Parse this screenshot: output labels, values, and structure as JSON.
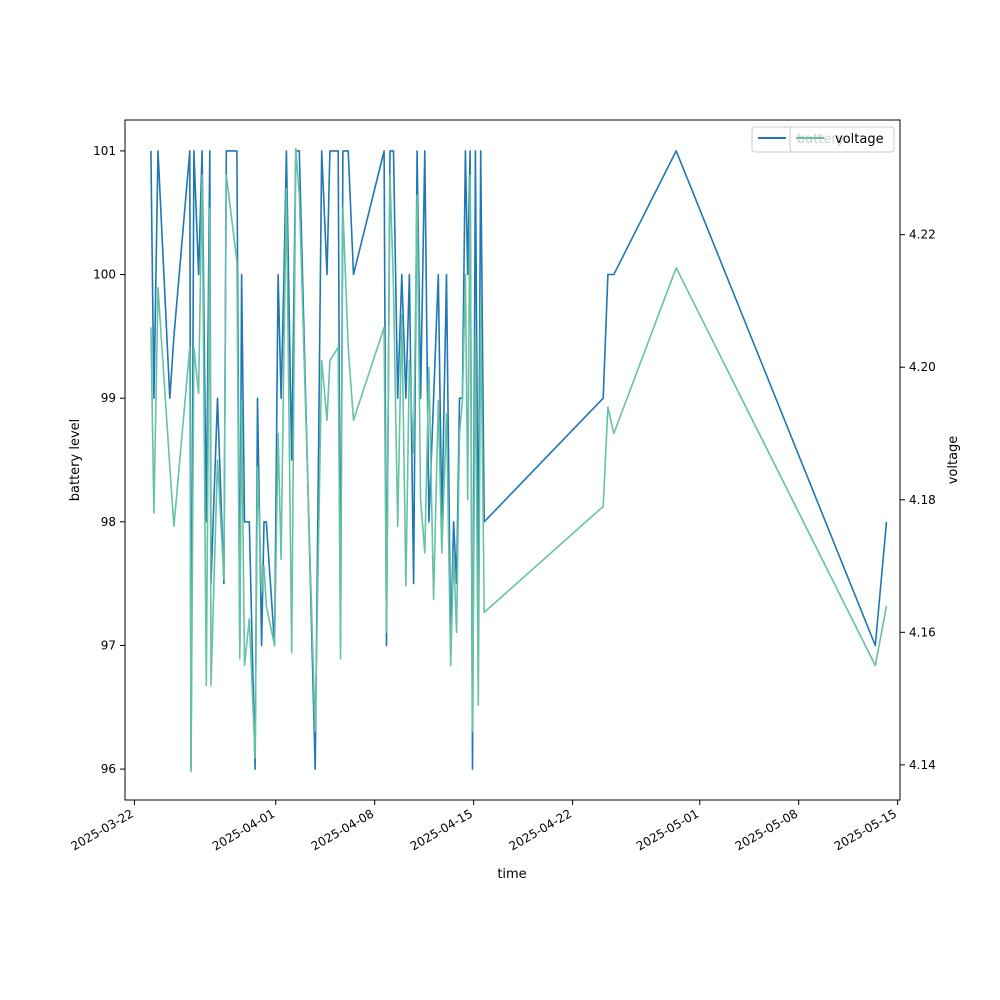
{
  "chart_data": {
    "type": "line",
    "xlabel": "time",
    "y_left_label": "battery level",
    "y_right_label": "voltage",
    "x_range": [
      "2025-03-21T08:00",
      "2025-05-15T04:00"
    ],
    "y_left_range": [
      95.75,
      101.25
    ],
    "y_right_range": [
      4.1347,
      4.2373
    ],
    "x_ticks": [
      "2025-03-22",
      "2025-04-01",
      "2025-04-08",
      "2025-04-15",
      "2025-04-22",
      "2025-05-01",
      "2025-05-08",
      "2025-05-15"
    ],
    "y_left_ticks": [
      96,
      97,
      98,
      99,
      100,
      101
    ],
    "y_right_ticks": [
      "4.14",
      "4.16",
      "4.18",
      "4.20",
      "4.22"
    ],
    "grid": false,
    "legend_position": "top-right",
    "series": [
      {
        "name": "battery",
        "axis": "left",
        "color": "#1f77b4",
        "points": [
          [
            "2025-03-23T04:00",
            101
          ],
          [
            "2025-03-23T09:00",
            99
          ],
          [
            "2025-03-23T16:00",
            101
          ],
          [
            "2025-03-24T12:00",
            99
          ],
          [
            "2025-03-24T19:00",
            99.5
          ],
          [
            "2025-03-25T22:00",
            101
          ],
          [
            "2025-03-26T00:00",
            96
          ],
          [
            "2025-03-26T05:00",
            101
          ],
          [
            "2025-03-26T13:00",
            100
          ],
          [
            "2025-03-26T19:00",
            101
          ],
          [
            "2025-03-27T02:00",
            98
          ],
          [
            "2025-03-27T08:00",
            101
          ],
          [
            "2025-03-27T10:00",
            97.5
          ],
          [
            "2025-03-27T21:00",
            99
          ],
          [
            "2025-03-28T08:00",
            97.5
          ],
          [
            "2025-03-28T12:00",
            101
          ],
          [
            "2025-03-29T06:00",
            101
          ],
          [
            "2025-03-29T11:00",
            97
          ],
          [
            "2025-03-29T14:00",
            100
          ],
          [
            "2025-03-29T19:00",
            98
          ],
          [
            "2025-03-30T03:00",
            98
          ],
          [
            "2025-03-30T13:00",
            96
          ],
          [
            "2025-03-30T17:00",
            99
          ],
          [
            "2025-03-31T00:00",
            97
          ],
          [
            "2025-03-31T04:00",
            98
          ],
          [
            "2025-03-31T08:00",
            98
          ],
          [
            "2025-03-31T22:00",
            97
          ],
          [
            "2025-04-01T04:00",
            100
          ],
          [
            "2025-04-01T09:00",
            99
          ],
          [
            "2025-04-01T14:00",
            100
          ],
          [
            "2025-04-01T18:00",
            101
          ],
          [
            "2025-04-02T03:00",
            98.5
          ],
          [
            "2025-04-02T10:00",
            101
          ],
          [
            "2025-04-02T16:00",
            101
          ],
          [
            "2025-04-03T19:00",
            96
          ],
          [
            "2025-04-04T06:00",
            101
          ],
          [
            "2025-04-04T15:00",
            100
          ],
          [
            "2025-04-04T20:00",
            101
          ],
          [
            "2025-04-05T10:00",
            101
          ],
          [
            "2025-04-05T14:00",
            97
          ],
          [
            "2025-04-05T18:00",
            101
          ],
          [
            "2025-04-06T03:00",
            101
          ],
          [
            "2025-04-06T12:00",
            100
          ],
          [
            "2025-04-08T16:00",
            101
          ],
          [
            "2025-04-08T20:00",
            97
          ],
          [
            "2025-04-09T02:00",
            101
          ],
          [
            "2025-04-09T08:00",
            101
          ],
          [
            "2025-04-09T15:00",
            99
          ],
          [
            "2025-04-09T22:00",
            100
          ],
          [
            "2025-04-10T05:00",
            99
          ],
          [
            "2025-04-10T11:00",
            100
          ],
          [
            "2025-04-10T18:00",
            97.5
          ],
          [
            "2025-04-11T00:00",
            101
          ],
          [
            "2025-04-11T06:00",
            99
          ],
          [
            "2025-04-11T13:00",
            101
          ],
          [
            "2025-04-11T20:00",
            98
          ],
          [
            "2025-04-12T04:00",
            99
          ],
          [
            "2025-04-12T12:00",
            100
          ],
          [
            "2025-04-12T18:00",
            98
          ],
          [
            "2025-04-13T02:00",
            100
          ],
          [
            "2025-04-13T09:00",
            97
          ],
          [
            "2025-04-13T14:00",
            98
          ],
          [
            "2025-04-13T19:00",
            97.5
          ],
          [
            "2025-04-14T00:00",
            99
          ],
          [
            "2025-04-14T05:00",
            99
          ],
          [
            "2025-04-14T10:00",
            101
          ],
          [
            "2025-04-14T14:00",
            100
          ],
          [
            "2025-04-14T18:00",
            101
          ],
          [
            "2025-04-14T22:00",
            96
          ],
          [
            "2025-04-15T03:00",
            101
          ],
          [
            "2025-04-15T08:00",
            97.5
          ],
          [
            "2025-04-15T12:00",
            101
          ],
          [
            "2025-04-15T18:00",
            98
          ],
          [
            "2025-04-24T04:00",
            99
          ],
          [
            "2025-04-24T12:00",
            100
          ],
          [
            "2025-04-24T22:00",
            100
          ],
          [
            "2025-04-29T08:00",
            101
          ],
          [
            "2025-05-13T10:00",
            97
          ],
          [
            "2025-05-14T05:00",
            98
          ]
        ]
      },
      {
        "name": "voltage",
        "axis": "right",
        "color": "#66c2a5",
        "points": [
          [
            "2025-03-23T04:00",
            4.206
          ],
          [
            "2025-03-23T09:00",
            4.178
          ],
          [
            "2025-03-23T16:00",
            4.212
          ],
          [
            "2025-03-24T12:00",
            4.185
          ],
          [
            "2025-03-24T19:00",
            4.176
          ],
          [
            "2025-03-25T22:00",
            4.203
          ],
          [
            "2025-03-26T00:00",
            4.139
          ],
          [
            "2025-03-26T05:00",
            4.203
          ],
          [
            "2025-03-26T13:00",
            4.196
          ],
          [
            "2025-03-26T19:00",
            4.229
          ],
          [
            "2025-03-27T02:00",
            4.152
          ],
          [
            "2025-03-27T08:00",
            4.224
          ],
          [
            "2025-03-27T10:00",
            4.152
          ],
          [
            "2025-03-27T21:00",
            4.186
          ],
          [
            "2025-03-28T08:00",
            4.168
          ],
          [
            "2025-03-28T12:00",
            4.229
          ],
          [
            "2025-03-29T06:00",
            4.216
          ],
          [
            "2025-03-29T11:00",
            4.156
          ],
          [
            "2025-03-29T14:00",
            4.195
          ],
          [
            "2025-03-29T19:00",
            4.155
          ],
          [
            "2025-03-30T03:00",
            4.162
          ],
          [
            "2025-03-30T13:00",
            4.141
          ],
          [
            "2025-03-30T17:00",
            4.185
          ],
          [
            "2025-03-31T00:00",
            4.166
          ],
          [
            "2025-03-31T04:00",
            4.17
          ],
          [
            "2025-03-31T08:00",
            4.164
          ],
          [
            "2025-03-31T22:00",
            4.158
          ],
          [
            "2025-04-01T04:00",
            4.19
          ],
          [
            "2025-04-01T09:00",
            4.171
          ],
          [
            "2025-04-01T14:00",
            4.203
          ],
          [
            "2025-04-01T18:00",
            4.227
          ],
          [
            "2025-04-02T03:00",
            4.157
          ],
          [
            "2025-04-02T10:00",
            4.233
          ],
          [
            "2025-04-02T16:00",
            4.226
          ],
          [
            "2025-04-03T19:00",
            4.145
          ],
          [
            "2025-04-04T06:00",
            4.201
          ],
          [
            "2025-04-04T15:00",
            4.192
          ],
          [
            "2025-04-04T20:00",
            4.201
          ],
          [
            "2025-04-05T10:00",
            4.203
          ],
          [
            "2025-04-05T14:00",
            4.156
          ],
          [
            "2025-04-05T18:00",
            4.224
          ],
          [
            "2025-04-06T03:00",
            4.203
          ],
          [
            "2025-04-06T12:00",
            4.192
          ],
          [
            "2025-04-08T16:00",
            4.206
          ],
          [
            "2025-04-08T20:00",
            4.16
          ],
          [
            "2025-04-09T02:00",
            4.229
          ],
          [
            "2025-04-09T08:00",
            4.212
          ],
          [
            "2025-04-09T15:00",
            4.176
          ],
          [
            "2025-04-09T22:00",
            4.208
          ],
          [
            "2025-04-10T05:00",
            4.167
          ],
          [
            "2025-04-10T11:00",
            4.201
          ],
          [
            "2025-04-10T18:00",
            4.187
          ],
          [
            "2025-04-11T00:00",
            4.226
          ],
          [
            "2025-04-11T06:00",
            4.18
          ],
          [
            "2025-04-11T13:00",
            4.172
          ],
          [
            "2025-04-11T20:00",
            4.2
          ],
          [
            "2025-04-12T04:00",
            4.165
          ],
          [
            "2025-04-12T12:00",
            4.195
          ],
          [
            "2025-04-12T18:00",
            4.172
          ],
          [
            "2025-04-13T02:00",
            4.193
          ],
          [
            "2025-04-13T09:00",
            4.155
          ],
          [
            "2025-04-13T14:00",
            4.172
          ],
          [
            "2025-04-13T19:00",
            4.16
          ],
          [
            "2025-04-14T00:00",
            4.19
          ],
          [
            "2025-04-14T05:00",
            4.195
          ],
          [
            "2025-04-14T10:00",
            4.214
          ],
          [
            "2025-04-14T14:00",
            4.18
          ],
          [
            "2025-04-14T18:00",
            4.229
          ],
          [
            "2025-04-14T22:00",
            4.145
          ],
          [
            "2025-04-15T03:00",
            4.205
          ],
          [
            "2025-04-15T08:00",
            4.149
          ],
          [
            "2025-04-15T12:00",
            4.21
          ],
          [
            "2025-04-15T18:00",
            4.163
          ],
          [
            "2025-04-24T04:00",
            4.179
          ],
          [
            "2025-04-24T12:00",
            4.194
          ],
          [
            "2025-04-24T22:00",
            4.19
          ],
          [
            "2025-04-29T08:00",
            4.215
          ],
          [
            "2025-05-13T10:00",
            4.155
          ],
          [
            "2025-05-14T05:00",
            4.164
          ]
        ]
      }
    ],
    "legend": {
      "back_entry": {
        "name": "battery",
        "color": "#1f77b4"
      },
      "front_entry": {
        "name": "voltage",
        "color": "#66c2a5"
      }
    }
  }
}
